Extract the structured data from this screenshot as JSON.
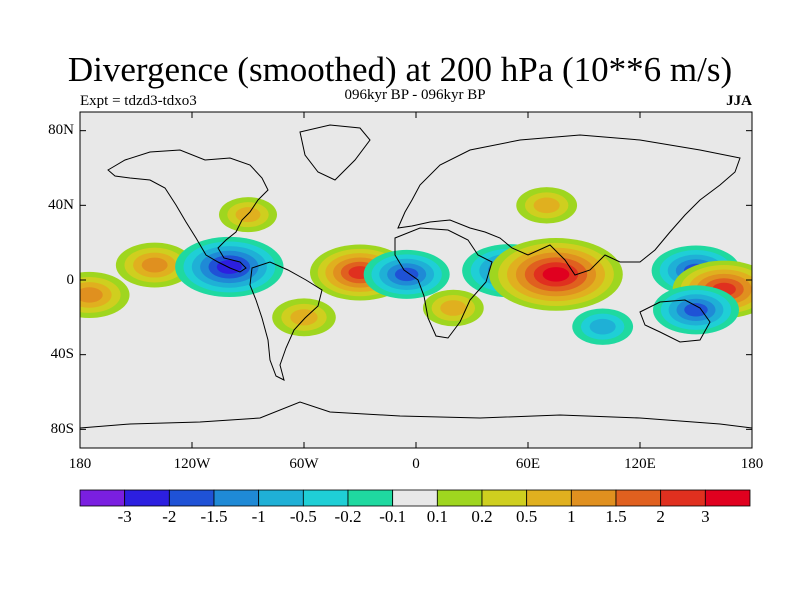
{
  "title": "Divergence (smoothed) at 200 hPa (10**6 m/s)",
  "subtitle": "096kyr BP - 096kyr BP",
  "experiment": "Expt = tdzd3-tdxo3",
  "season": "JJA",
  "lat_ticks": [
    "80N",
    "40N",
    "0",
    "40S",
    "80S"
  ],
  "lon_ticks": [
    "180",
    "120W",
    "60W",
    "0",
    "60E",
    "120E",
    "180"
  ],
  "colorbar": {
    "labels": [
      "-3",
      "-2",
      "-1.5",
      "-1",
      "-0.5",
      "-0.2",
      "-0.1",
      "0.1",
      "0.2",
      "0.5",
      "1",
      "1.5",
      "2",
      "3"
    ],
    "colors": [
      "#7a1fe0",
      "#2c1fe0",
      "#1f52d6",
      "#1f8ad6",
      "#1fb0d6",
      "#1fcfd6",
      "#1fd9a0",
      "#e8e8e8",
      "#9fd61f",
      "#cfcf1f",
      "#e0b01f",
      "#e0901f",
      "#e0601f",
      "#e0301f",
      "#e0001f"
    ]
  },
  "chart_data": {
    "type": "filled-contour-map",
    "variable": "Divergence (smoothed) at 200 hPa",
    "units": "10**6 m/s",
    "lon_range": [
      -180,
      180
    ],
    "lat_range": [
      -90,
      90
    ],
    "levels": [
      -3,
      -2,
      -1.5,
      -1,
      -0.5,
      -0.2,
      -0.1,
      0.1,
      0.2,
      0.5,
      1,
      1.5,
      2,
      3
    ],
    "features": [
      {
        "lon": -140,
        "lat": 8,
        "value": 1.2
      },
      {
        "lon": -175,
        "lat": -8,
        "value": 1.3
      },
      {
        "lon": -100,
        "lat": 7,
        "value": -2.3
      },
      {
        "lon": -30,
        "lat": 4,
        "value": 2.0
      },
      {
        "lon": -5,
        "lat": 3,
        "value": -1.5
      },
      {
        "lon": 50,
        "lat": 5,
        "value": -1.8
      },
      {
        "lon": 75,
        "lat": 3,
        "value": 3.2
      },
      {
        "lon": 150,
        "lat": 5,
        "value": -1.6
      },
      {
        "lon": 165,
        "lat": -5,
        "value": 2.1
      },
      {
        "lon": 150,
        "lat": -16,
        "value": -1.5
      },
      {
        "lon": -60,
        "lat": -20,
        "value": 0.7
      },
      {
        "lon": 20,
        "lat": -15,
        "value": 0.6
      },
      {
        "lon": 70,
        "lat": 40,
        "value": 0.6
      },
      {
        "lon": -90,
        "lat": 35,
        "value": 0.5
      },
      {
        "lon": 100,
        "lat": -25,
        "value": -0.6
      }
    ]
  }
}
